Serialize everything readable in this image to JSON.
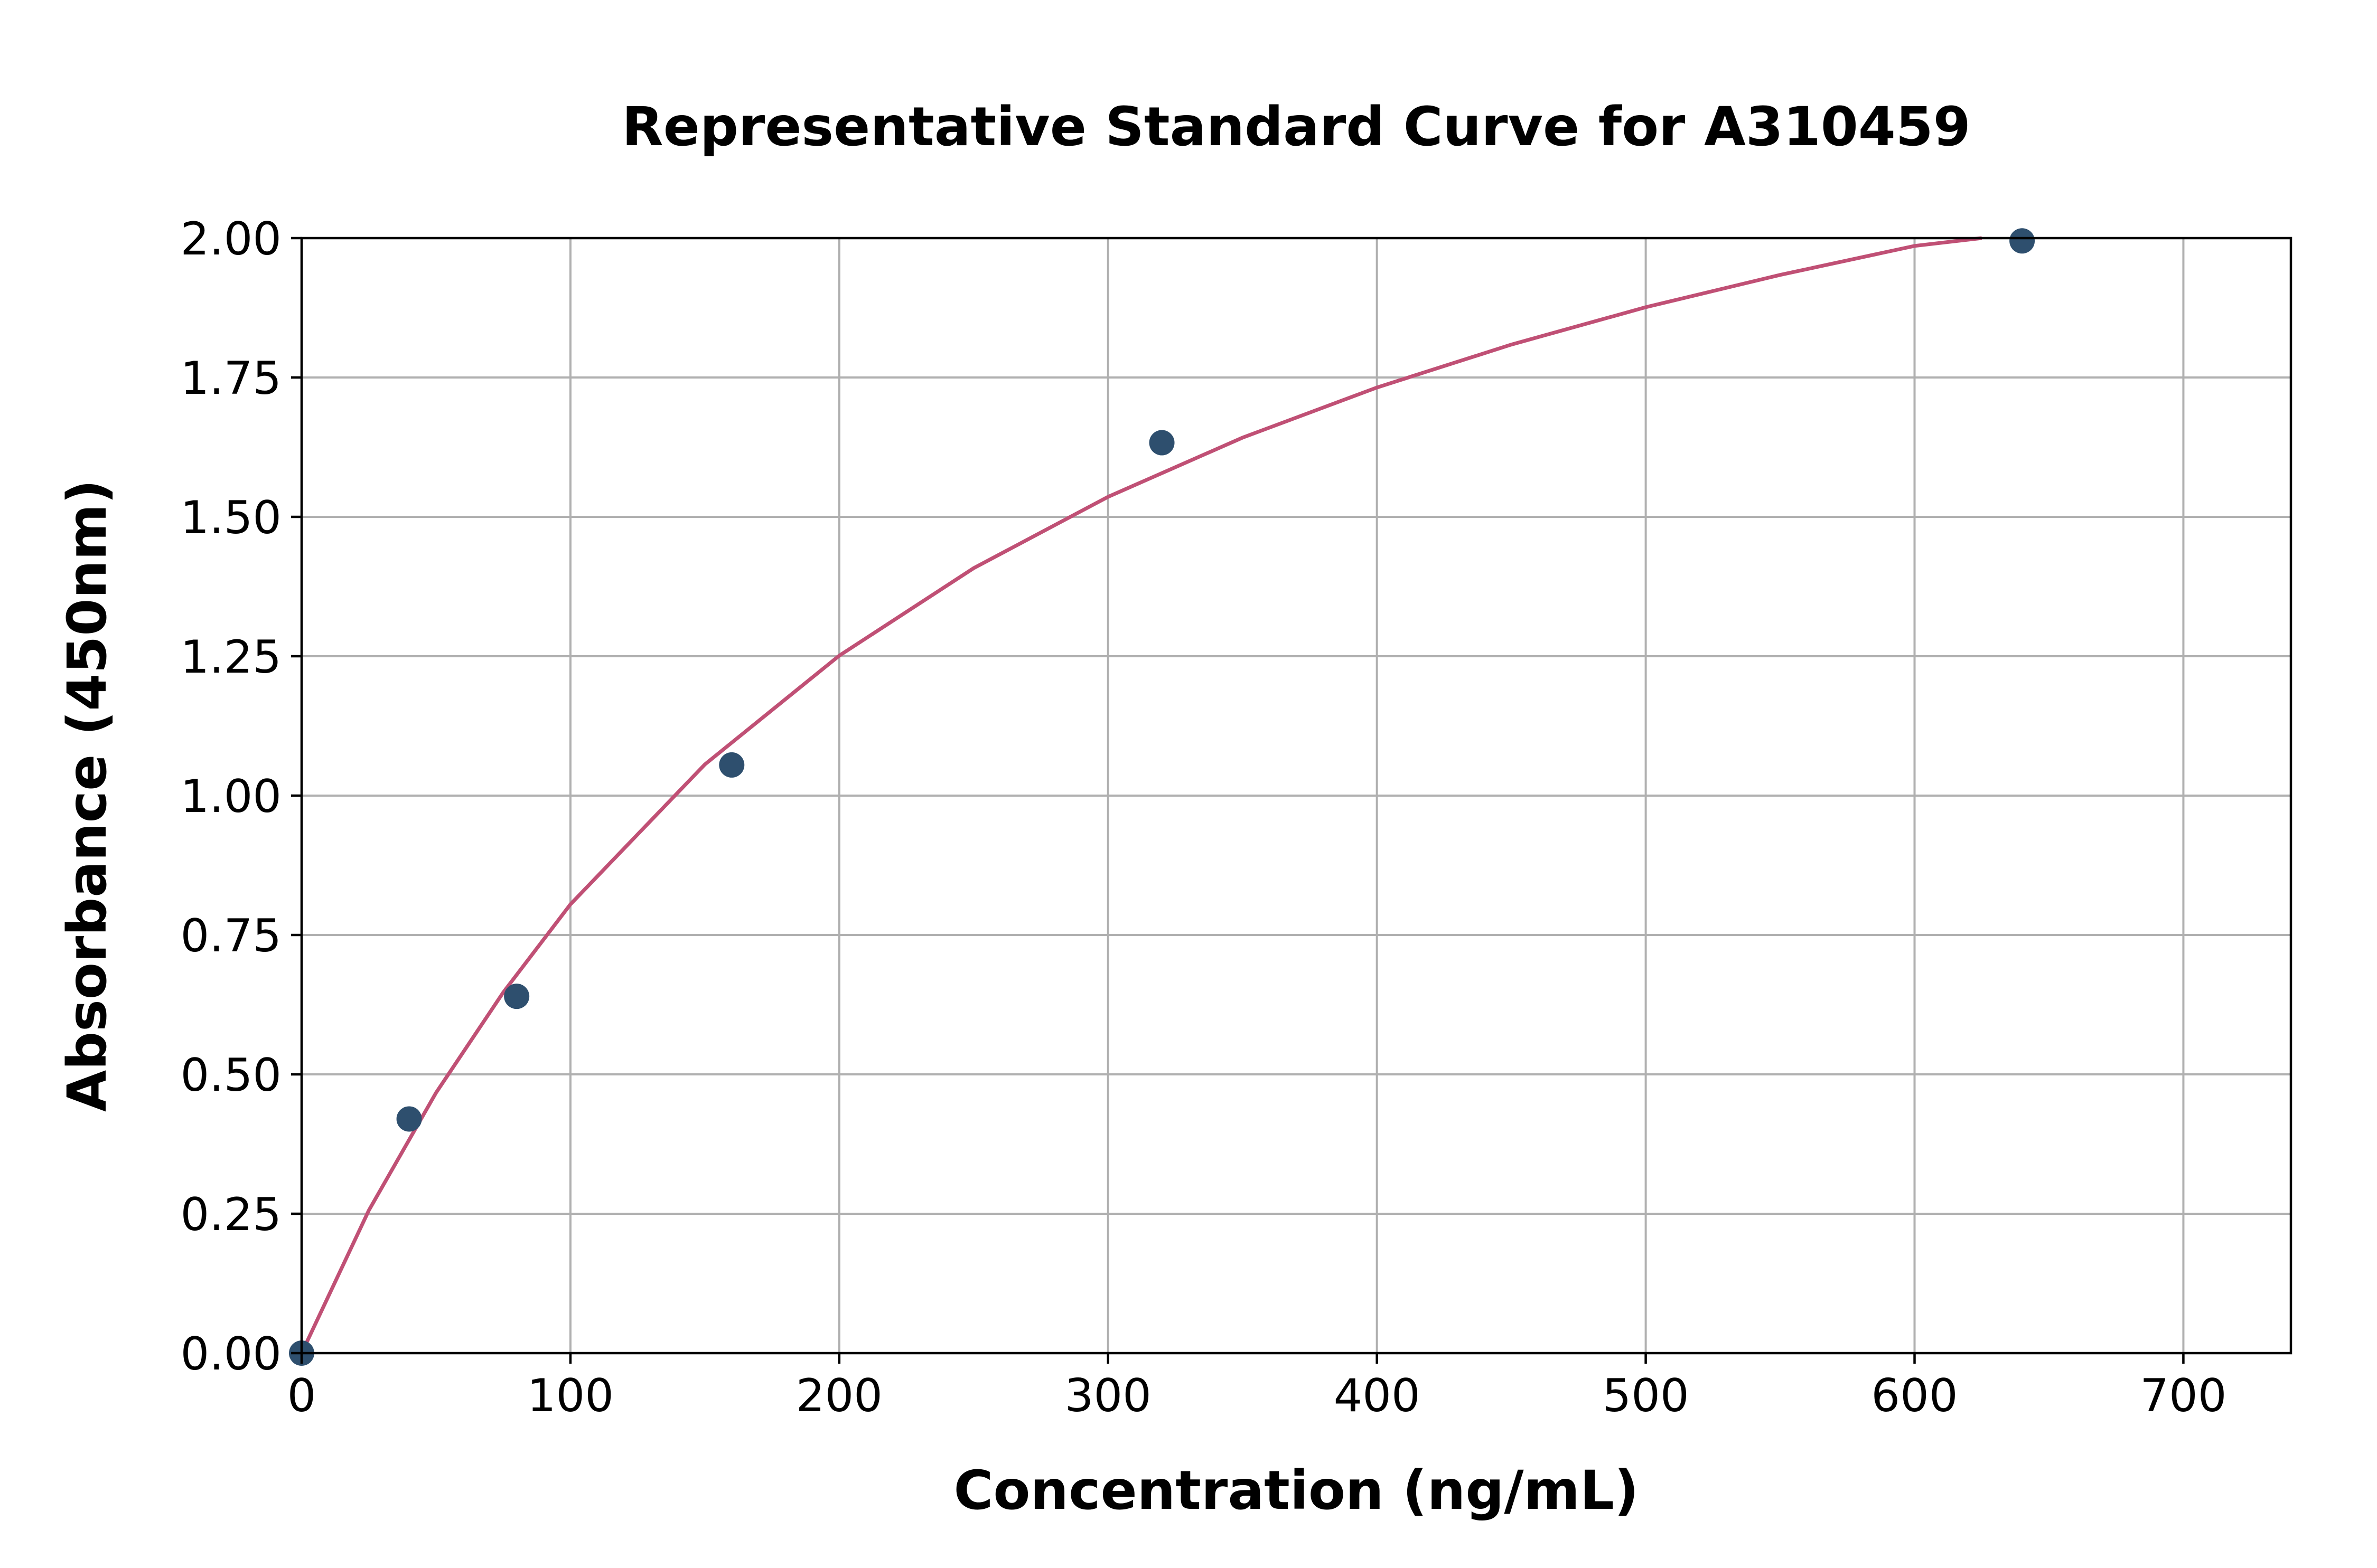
{
  "chart_data": {
    "type": "scatter",
    "title": "Representative Standard Curve for A310459",
    "xlabel": "Concentration (ng/mL)",
    "ylabel": "Absorbance (450nm)",
    "xlim": [
      0,
      740
    ],
    "ylim": [
      0,
      2.0
    ],
    "xticks": [
      0,
      100,
      200,
      300,
      400,
      500,
      600,
      700
    ],
    "xtick_labels": [
      "0",
      "100",
      "200",
      "300",
      "400",
      "500",
      "600",
      "700"
    ],
    "yticks": [
      0,
      0.25,
      0.5,
      0.75,
      1.0,
      1.25,
      1.5,
      1.75,
      2.0
    ],
    "ytick_labels": [
      "0.00",
      "0.25",
      "0.50",
      "0.75",
      "1.00",
      "1.25",
      "1.50",
      "1.75",
      "2.00"
    ],
    "grid": true,
    "points": {
      "x": [
        0,
        40,
        80,
        160,
        320,
        640
      ],
      "y": [
        0.0,
        0.42,
        0.64,
        1.055,
        1.633,
        1.995
      ],
      "color": "#2e4f6e"
    },
    "fit_curve": {
      "x": [
        0,
        25,
        50,
        75,
        100,
        150,
        200,
        250,
        300,
        350,
        400,
        450,
        500,
        550,
        600,
        625
      ],
      "y": [
        0.0,
        0.256,
        0.467,
        0.647,
        0.805,
        1.056,
        1.251,
        1.408,
        1.536,
        1.642,
        1.732,
        1.809,
        1.876,
        1.934,
        1.986,
        2.0
      ],
      "color": "#c05075"
    }
  }
}
